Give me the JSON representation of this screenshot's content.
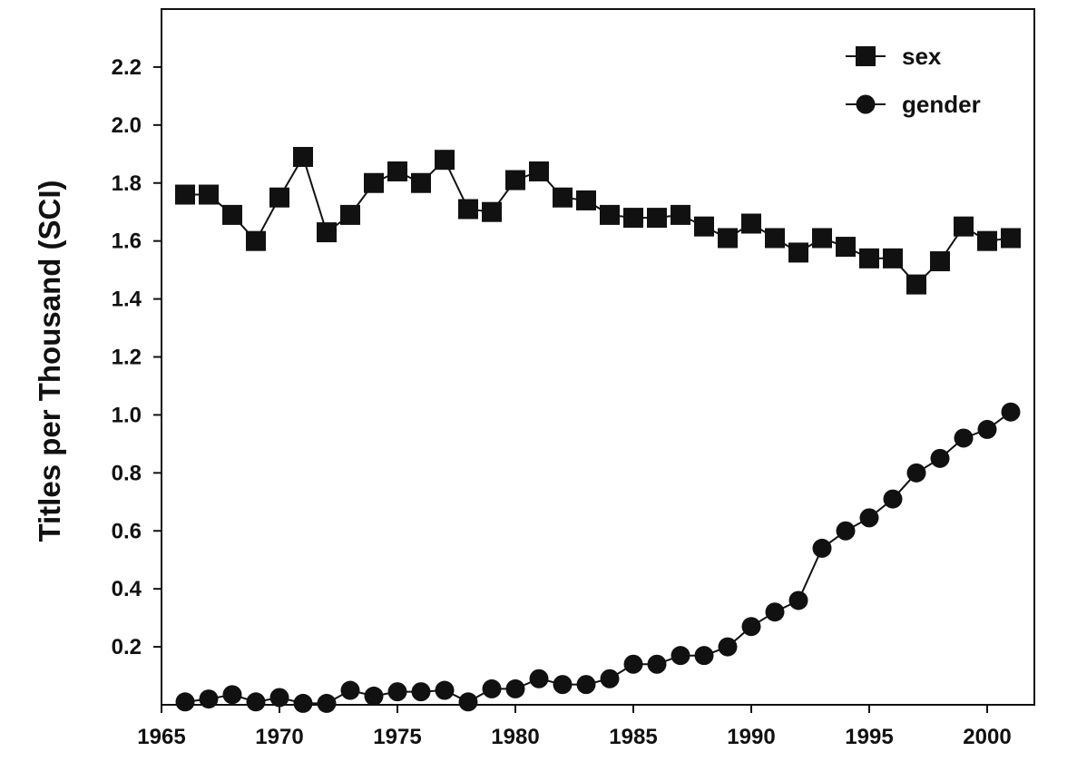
{
  "chart_data": {
    "type": "line",
    "title": "",
    "xlabel": "",
    "ylabel": "Titles per Thousand (SCI)",
    "xlim": [
      1965,
      2002
    ],
    "ylim": [
      0,
      2.4
    ],
    "x_ticks": [
      1965,
      1970,
      1975,
      1980,
      1985,
      1990,
      1995,
      2000
    ],
    "x_tick_labels": [
      "1965",
      "1970",
      "1975",
      "1980",
      "1985",
      "1990",
      "1995",
      "2000"
    ],
    "y_ticks": [
      0.2,
      0.4,
      0.6,
      0.8,
      1.0,
      1.2,
      1.4,
      1.6,
      1.8,
      2.0,
      2.2
    ],
    "y_tick_labels": [
      "0.2",
      "0.4",
      "0.6",
      "0.8",
      "1.0",
      "1.2",
      "1.4",
      "1.6",
      "1.8",
      "2.0",
      "2.2"
    ],
    "grid": false,
    "legend_position": "top-right",
    "x": [
      1966,
      1967,
      1968,
      1969,
      1970,
      1971,
      1972,
      1973,
      1974,
      1975,
      1976,
      1977,
      1978,
      1979,
      1980,
      1981,
      1982,
      1983,
      1984,
      1985,
      1986,
      1987,
      1988,
      1989,
      1990,
      1991,
      1992,
      1993,
      1994,
      1995,
      1996,
      1997,
      1998,
      1999,
      2000,
      2001
    ],
    "series": [
      {
        "name": "sex",
        "marker": "square",
        "values": [
          1.76,
          1.76,
          1.69,
          1.6,
          1.75,
          1.89,
          1.63,
          1.69,
          1.8,
          1.84,
          1.8,
          1.88,
          1.71,
          1.7,
          1.81,
          1.84,
          1.75,
          1.74,
          1.69,
          1.68,
          1.68,
          1.69,
          1.65,
          1.61,
          1.66,
          1.61,
          1.56,
          1.61,
          1.58,
          1.54,
          1.54,
          1.45,
          1.53,
          1.65,
          1.6,
          1.61
        ]
      },
      {
        "name": "gender",
        "marker": "circle",
        "values": [
          0.01,
          0.02,
          0.035,
          0.01,
          0.025,
          0.005,
          0.005,
          0.05,
          0.03,
          0.045,
          0.045,
          0.05,
          0.01,
          0.055,
          0.055,
          0.09,
          0.07,
          0.07,
          0.09,
          0.14,
          0.14,
          0.17,
          0.17,
          0.2,
          0.27,
          0.32,
          0.36,
          0.54,
          0.6,
          0.645,
          0.71,
          0.8,
          0.85,
          0.92,
          0.95,
          1.01
        ]
      }
    ]
  }
}
